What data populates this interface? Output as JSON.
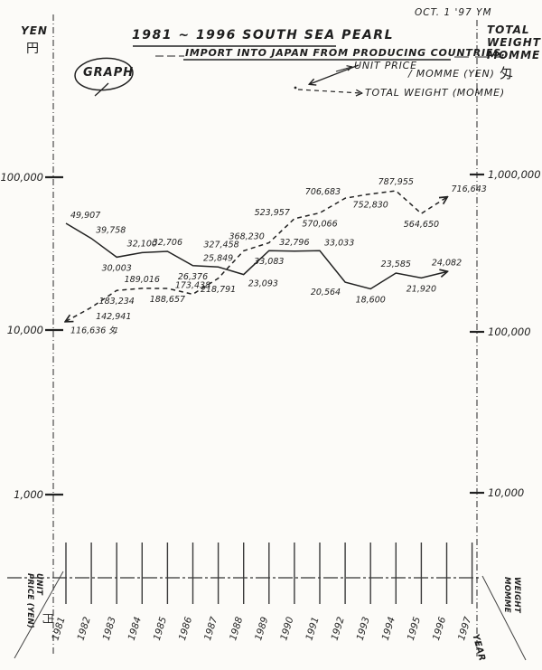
{
  "header": {
    "date_note": "OCT. 1 '97 YM",
    "title": "1981 ~ 1996 SOUTH SEA PEARL",
    "subtitle": "IMPORT INTO JAPAN FROM PRODUCING COUNTRIES.",
    "badge": "GRAPH"
  },
  "left_axis_header": {
    "unit_en": "YEN",
    "unit_kanji": "円"
  },
  "right_axis_header": {
    "line1": "TOTAL",
    "line2": "WEIGHT",
    "line3": "MOMME",
    "kanji": "匁"
  },
  "legend": {
    "price_label_1": "UNIT PRICE",
    "price_label_2": "/ MOMME (YEN)",
    "weight_label": "TOTAL WEIGHT (MOMME)"
  },
  "bottom_left": {
    "word1": "UNIT",
    "word2": "PRICE (YEN)",
    "kanji": "円"
  },
  "bottom_right": {
    "word1": "WEIGHT",
    "word2": "MOMME",
    "year_label": "YEAR"
  },
  "chart_data": {
    "type": "line",
    "title": "1981 ~ 1996 SOUTH SEA PEARL",
    "subtitle": "IMPORT INTO JAPAN FROM PRODUCING COUNTRIES.",
    "scale": "log",
    "x_years": [
      1981,
      1982,
      1983,
      1984,
      1985,
      1986,
      1987,
      1988,
      1989,
      1990,
      1991,
      1992,
      1993,
      1994,
      1995,
      1996
    ],
    "x_tick_labels": [
      "1981",
      "1982",
      "1983",
      "1984",
      "1985",
      "1986",
      "1987",
      "1988",
      "1989",
      "1990",
      "1991",
      "1992",
      "1993",
      "1994",
      "1995",
      "1996",
      "1997"
    ],
    "left_axis": {
      "title": "YEN",
      "tick_labels": [
        "100,000",
        "10,000",
        "1,000"
      ],
      "tick_values": [
        100000,
        10000,
        1000
      ]
    },
    "right_axis": {
      "title": "TOTAL WEIGHT MOMME",
      "tick_labels": [
        "1,000,000",
        "100,000",
        "10,000"
      ],
      "tick_values": [
        1000000,
        100000,
        10000
      ]
    },
    "series": [
      {
        "name": "UNIT PRICE / MOMME (YEN)",
        "axis": "left",
        "style": "solid",
        "values": [
          49907,
          39758,
          30003,
          32100,
          32706,
          26376,
          25849,
          23093,
          33083,
          32796,
          33033,
          20564,
          18600,
          23585,
          21920,
          24082
        ],
        "label_pos": [
          "ar",
          "ar",
          "b",
          "a",
          "a",
          "b",
          "a",
          "br",
          "b",
          "a",
          "ar",
          "bl",
          "b",
          "a",
          "b",
          "a"
        ],
        "first_label_suffix": ""
      },
      {
        "name": "TOTAL WEIGHT (MOMME)",
        "axis": "right",
        "style": "dashed",
        "values": [
          116636,
          142941,
          183234,
          189016,
          188657,
          173438,
          218791,
          327458,
          368230,
          523957,
          570066,
          706683,
          752830,
          787955,
          564650,
          716643
        ],
        "label_pos": [
          "br",
          "br",
          "b",
          "a",
          "b",
          "a",
          "b",
          "al",
          "al",
          "al",
          "b",
          "al",
          "b",
          "a",
          "b",
          "ar"
        ],
        "first_label_suffix": " 匁"
      }
    ]
  }
}
